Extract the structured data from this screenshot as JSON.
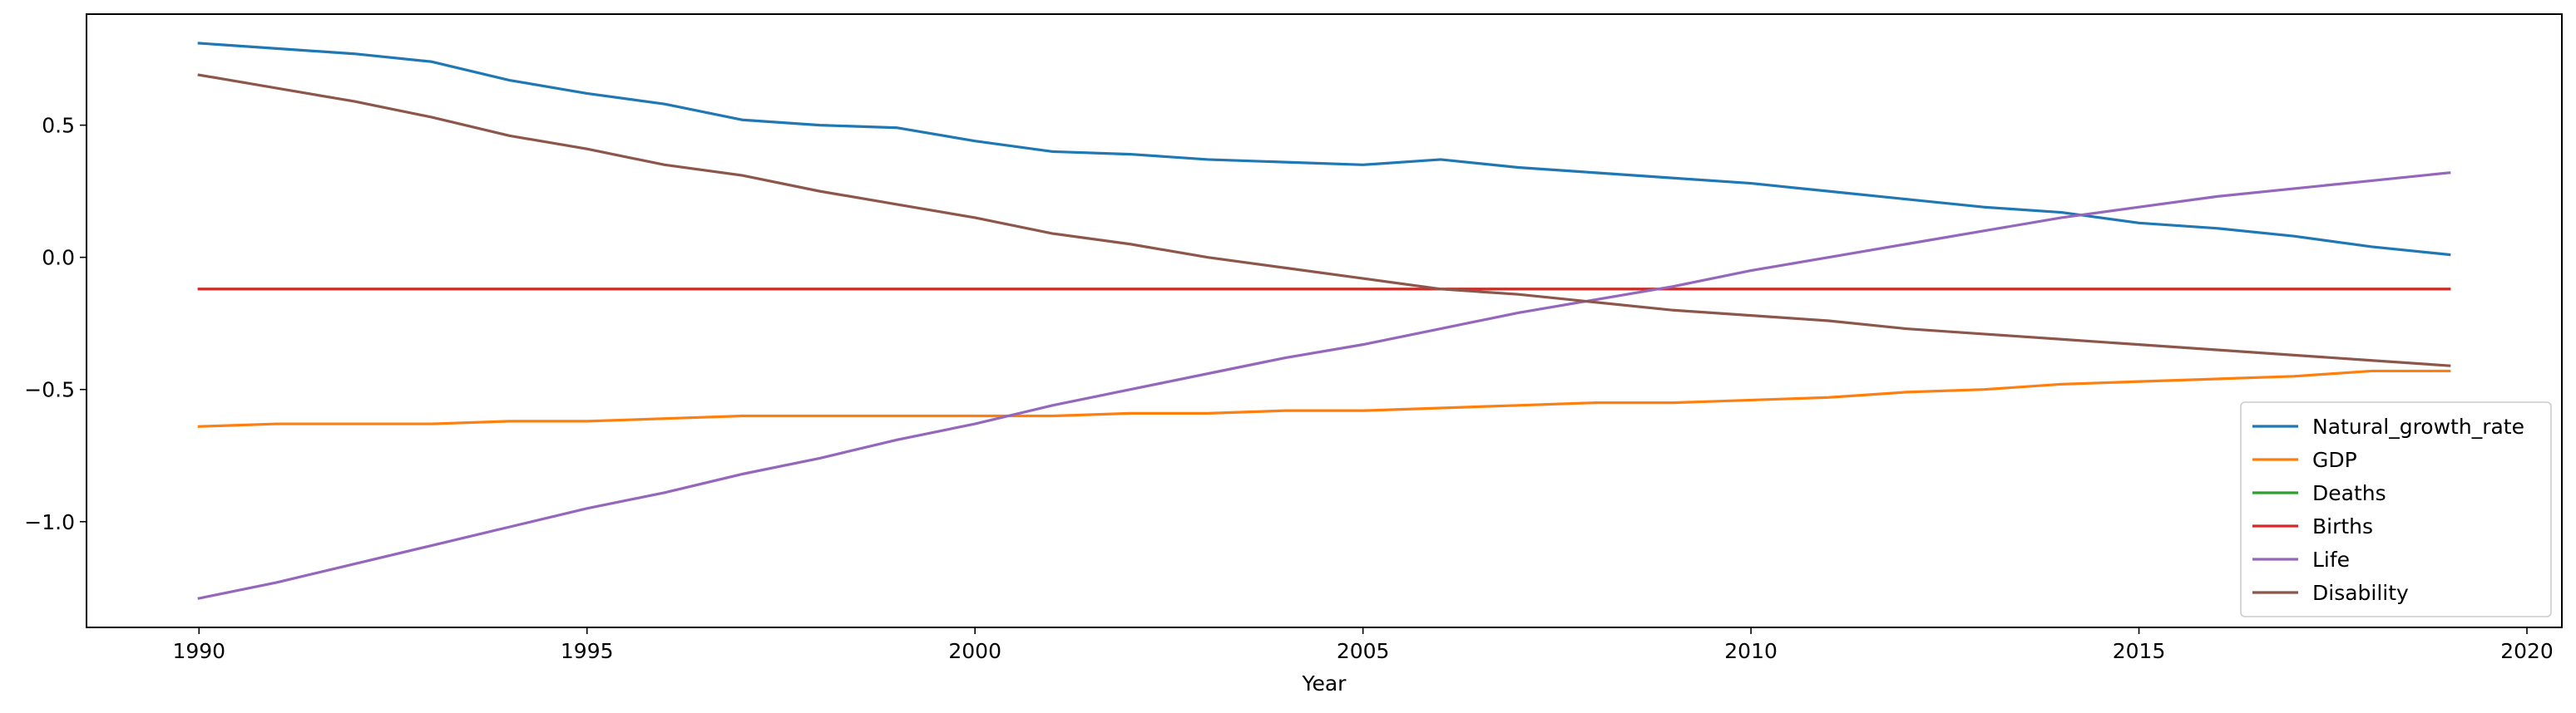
{
  "chart_data": {
    "type": "line",
    "title": "",
    "xlabel": "Year",
    "ylabel": "",
    "xlim": [
      1988.55,
      2020.45
    ],
    "ylim": [
      -1.4,
      0.92
    ],
    "xticks": [
      1990,
      1995,
      2000,
      2005,
      2010,
      2015,
      2020
    ],
    "xtick_labels": [
      "1990",
      "1995",
      "2000",
      "2005",
      "2010",
      "2015",
      "2020"
    ],
    "yticks": [
      -1.0,
      -0.5,
      0.0,
      0.5
    ],
    "ytick_labels": [
      "−1.0",
      "−0.5",
      "0.0",
      "0.5"
    ],
    "grid": false,
    "legend_position": "lower-right",
    "x": [
      1990,
      1991,
      1992,
      1993,
      1994,
      1995,
      1996,
      1997,
      1998,
      1999,
      2000,
      2001,
      2002,
      2003,
      2004,
      2005,
      2006,
      2007,
      2008,
      2009,
      2010,
      2011,
      2012,
      2013,
      2014,
      2015,
      2016,
      2017,
      2018,
      2019
    ],
    "series": [
      {
        "name": "Natural_growth_rate",
        "color": "#1f77b4",
        "values": [
          0.81,
          0.79,
          0.77,
          0.74,
          0.67,
          0.62,
          0.58,
          0.52,
          0.5,
          0.49,
          0.44,
          0.4,
          0.39,
          0.37,
          0.36,
          0.35,
          0.37,
          0.34,
          0.32,
          0.3,
          0.28,
          0.25,
          0.22,
          0.19,
          0.17,
          0.13,
          0.11,
          0.08,
          0.04,
          0.01
        ]
      },
      {
        "name": "GDP",
        "color": "#ff7f0e",
        "values": [
          -0.64,
          -0.63,
          -0.63,
          -0.63,
          -0.62,
          -0.62,
          -0.61,
          -0.6,
          -0.6,
          -0.6,
          -0.6,
          -0.6,
          -0.59,
          -0.59,
          -0.58,
          -0.58,
          -0.57,
          -0.56,
          -0.55,
          -0.55,
          -0.54,
          -0.53,
          -0.51,
          -0.5,
          -0.48,
          -0.47,
          -0.46,
          -0.45,
          -0.43,
          -0.43
        ]
      },
      {
        "name": "Deaths",
        "color": "#2ca02c",
        "values": [
          -0.12,
          -0.12,
          -0.12,
          -0.12,
          -0.12,
          -0.12,
          -0.12,
          -0.12,
          -0.12,
          -0.12,
          -0.12,
          -0.12,
          -0.12,
          -0.12,
          -0.12,
          -0.12,
          -0.12,
          -0.12,
          -0.12,
          -0.12,
          -0.12,
          -0.12,
          -0.12,
          -0.12,
          -0.12,
          -0.12,
          -0.12,
          -0.12,
          -0.12,
          -0.12
        ]
      },
      {
        "name": "Births",
        "color": "#d62728",
        "values": [
          -0.12,
          -0.12,
          -0.12,
          -0.12,
          -0.12,
          -0.12,
          -0.12,
          -0.12,
          -0.12,
          -0.12,
          -0.12,
          -0.12,
          -0.12,
          -0.12,
          -0.12,
          -0.12,
          -0.12,
          -0.12,
          -0.12,
          -0.12,
          -0.12,
          -0.12,
          -0.12,
          -0.12,
          -0.12,
          -0.12,
          -0.12,
          -0.12,
          -0.12,
          -0.12
        ]
      },
      {
        "name": "Life",
        "color": "#9467bd",
        "values": [
          -1.29,
          -1.23,
          -1.16,
          -1.09,
          -1.02,
          -0.95,
          -0.89,
          -0.82,
          -0.76,
          -0.69,
          -0.63,
          -0.56,
          -0.5,
          -0.44,
          -0.38,
          -0.33,
          -0.27,
          -0.21,
          -0.16,
          -0.11,
          -0.05,
          0.0,
          0.05,
          0.1,
          0.15,
          0.19,
          0.23,
          0.26,
          0.29,
          0.32
        ]
      },
      {
        "name": "Disability",
        "color": "#8c564b",
        "values": [
          0.69,
          0.64,
          0.59,
          0.53,
          0.46,
          0.41,
          0.35,
          0.31,
          0.25,
          0.2,
          0.15,
          0.09,
          0.05,
          0.0,
          -0.04,
          -0.08,
          -0.12,
          -0.14,
          -0.17,
          -0.2,
          -0.22,
          -0.24,
          -0.27,
          -0.29,
          -0.31,
          -0.33,
          -0.35,
          -0.37,
          -0.39,
          -0.41
        ]
      }
    ]
  }
}
